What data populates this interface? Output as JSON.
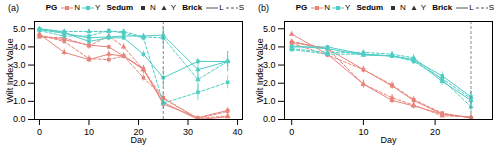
{
  "chart_data": [
    {
      "type": "line",
      "title": "(a)",
      "xlabel": "Day",
      "ylabel": "Wilt Index Value",
      "xlim": [
        -1,
        41
      ],
      "ylim": [
        0,
        5.4
      ],
      "xticks": [
        0,
        10,
        20,
        30,
        40
      ],
      "yticks": [
        0,
        1,
        2,
        3,
        4,
        5
      ],
      "grid": false,
      "legend": "top",
      "vlines": [
        {
          "x": 25,
          "color": "#888888",
          "line_style": "dashed"
        }
      ],
      "series": [
        {
          "color": "#e8837a",
          "line_style": "solid",
          "marker": "square",
          "x": [
            0,
            5,
            10,
            14,
            17,
            21,
            25,
            32,
            38
          ],
          "values": [
            4.6,
            4.4,
            4.1,
            4.0,
            3.5,
            2.8,
            0.85,
            0.1,
            0.5
          ],
          "yerr": [
            0.08,
            0.09,
            0.12,
            0.12,
            0.13,
            0.18,
            0.25,
            0.08,
            0.18
          ]
        },
        {
          "color": "#e8837a",
          "line_style": "dashed",
          "marker": "square",
          "x": [
            0,
            5,
            10,
            14,
            17,
            21,
            25,
            32,
            38
          ],
          "values": [
            4.65,
            4.3,
            3.35,
            3.3,
            3.5,
            2.3,
            1.2,
            0.05,
            0.45
          ],
          "yerr": [
            0.09,
            0.13,
            0.18,
            0.18,
            0.13,
            0.18,
            0.25,
            0.04,
            0.13
          ]
        },
        {
          "color": "#e8837a",
          "line_style": "solid",
          "marker": "triangle",
          "x": [
            0,
            5,
            10,
            14,
            17,
            21,
            25,
            32,
            38
          ],
          "values": [
            4.7,
            3.7,
            3.3,
            3.6,
            3.5,
            2.75,
            0.95,
            0.0,
            0.15
          ],
          "yerr": [
            0.09,
            0.18,
            0.18,
            0.18,
            0.18,
            0.22,
            0.25,
            0.0,
            0.09
          ]
        },
        {
          "color": "#e8837a",
          "line_style": "dashed",
          "marker": "triangle",
          "x": [
            0,
            5,
            10,
            14,
            17,
            21,
            25,
            32,
            38
          ],
          "values": [
            4.55,
            4.5,
            4.05,
            4.6,
            4.0,
            2.75,
            1.15,
            0.05,
            0.2
          ],
          "yerr": [
            0.09,
            0.09,
            0.18,
            0.13,
            0.18,
            0.22,
            0.25,
            0.04,
            0.09
          ]
        },
        {
          "color": "#4ecdc4",
          "line_style": "solid",
          "marker": "square",
          "x": [
            0,
            5,
            10,
            14,
            17,
            21,
            25,
            32,
            38
          ],
          "values": [
            5.0,
            4.8,
            4.3,
            4.5,
            4.5,
            3.6,
            2.3,
            3.2,
            3.2
          ],
          "yerr": [
            0.09,
            0.09,
            0.18,
            0.13,
            0.13,
            0.18,
            0.55,
            0.18,
            0.27
          ]
        },
        {
          "color": "#4ecdc4",
          "line_style": "dashed",
          "marker": "square",
          "x": [
            0,
            5,
            10,
            14,
            17,
            21,
            25,
            32,
            38
          ],
          "values": [
            4.9,
            4.6,
            4.6,
            4.9,
            4.75,
            4.5,
            0.9,
            1.5,
            2.05
          ],
          "yerr": [
            0.09,
            0.13,
            0.13,
            0.09,
            0.09,
            0.18,
            0.36,
            0.45,
            0.36
          ]
        },
        {
          "color": "#4ecdc4",
          "line_style": "solid",
          "marker": "triangle",
          "x": [
            0,
            5,
            10,
            14,
            17,
            21,
            25,
            32,
            38
          ],
          "values": [
            4.95,
            4.75,
            4.5,
            4.55,
            4.6,
            4.6,
            4.65,
            2.75,
            3.2
          ],
          "yerr": [
            0.09,
            0.09,
            0.13,
            0.13,
            0.13,
            0.13,
            0.45,
            0.55,
            0.55
          ]
        },
        {
          "color": "#4ecdc4",
          "line_style": "dashed",
          "marker": "triangle",
          "x": [
            0,
            5,
            10,
            14,
            17,
            21,
            25,
            32,
            38
          ],
          "values": [
            5.0,
            4.85,
            4.85,
            4.85,
            4.85,
            4.55,
            4.5,
            2.2,
            3.2
          ],
          "yerr": [
            0.09,
            0.09,
            0.09,
            0.09,
            0.09,
            0.13,
            0.55,
            0.64,
            0.55
          ]
        }
      ],
      "legend_groups": [
        {
          "title": "PG",
          "entries": [
            {
              "name": "N",
              "color": "#e8837a",
              "marker": "square",
              "line_style": "solid"
            },
            {
              "name": "Y",
              "color": "#4ecdc4",
              "marker": "square",
              "line_style": "solid"
            }
          ]
        },
        {
          "title": "Sedum",
          "entries": [
            {
              "name": "N",
              "color": "#333333",
              "marker": "square",
              "line_style": "none"
            },
            {
              "name": "Y",
              "color": "#333333",
              "marker": "triangle",
              "line_style": "none"
            }
          ]
        },
        {
          "title": "Brick",
          "entries": [
            {
              "name": "L",
              "color": "#555555",
              "marker": "none",
              "line_style": "solid"
            },
            {
              "name": "S",
              "color": "#555555",
              "marker": "none",
              "line_style": "dashed"
            }
          ]
        }
      ]
    },
    {
      "type": "line",
      "title": "(b)",
      "xlabel": "Day",
      "ylabel": "Wilt Index Value",
      "xlim": [
        -1,
        28
      ],
      "ylim": [
        0,
        5.4
      ],
      "xticks": [
        0,
        10,
        20
      ],
      "yticks": [
        0,
        1,
        2,
        3,
        4,
        5
      ],
      "grid": false,
      "legend": "top",
      "vlines": [
        {
          "x": 25,
          "color": "#888888",
          "line_style": "dashed"
        }
      ],
      "series": [
        {
          "color": "#e8837a",
          "line_style": "solid",
          "marker": "square",
          "x": [
            0,
            5,
            10,
            14,
            17,
            21,
            25
          ],
          "values": [
            4.25,
            3.9,
            2.75,
            1.85,
            1.05,
            0.3,
            0.1
          ],
          "yerr": [
            0.09,
            0.13,
            0.18,
            0.18,
            0.18,
            0.13,
            0.04
          ]
        },
        {
          "color": "#e8837a",
          "line_style": "dashed",
          "marker": "square",
          "x": [
            0,
            5,
            10,
            14,
            17,
            21,
            25
          ],
          "values": [
            4.2,
            3.55,
            2.75,
            1.9,
            1.1,
            0.35,
            0.1
          ],
          "yerr": [
            0.09,
            0.13,
            0.18,
            0.18,
            0.18,
            0.09,
            0.04
          ]
        },
        {
          "color": "#e8837a",
          "line_style": "solid",
          "marker": "triangle",
          "x": [
            0,
            5,
            10,
            14,
            17,
            21,
            25
          ],
          "values": [
            4.7,
            3.6,
            1.95,
            1.05,
            0.75,
            0.3,
            0.1
          ],
          "yerr": [
            0.13,
            0.18,
            0.22,
            0.18,
            0.18,
            0.09,
            0.04
          ]
        },
        {
          "color": "#e8837a",
          "line_style": "dashed",
          "marker": "triangle",
          "x": [
            0,
            5,
            10,
            14,
            17,
            21,
            25
          ],
          "values": [
            4.3,
            3.9,
            1.95,
            1.2,
            0.8,
            0.2,
            0.15
          ],
          "yerr": [
            0.09,
            0.13,
            0.22,
            0.18,
            0.18,
            0.09,
            0.04
          ]
        },
        {
          "color": "#4ecdc4",
          "line_style": "solid",
          "marker": "square",
          "x": [
            0,
            5,
            10,
            14,
            17,
            21,
            25
          ],
          "values": [
            4.0,
            4.0,
            3.6,
            3.5,
            3.3,
            2.4,
            1.25
          ],
          "yerr": [
            0.09,
            0.09,
            0.13,
            0.13,
            0.18,
            0.22,
            0.36
          ]
        },
        {
          "color": "#4ecdc4",
          "line_style": "dashed",
          "marker": "square",
          "x": [
            0,
            5,
            10,
            14,
            17,
            21,
            25
          ],
          "values": [
            3.85,
            3.6,
            3.6,
            3.5,
            3.2,
            2.25,
            1.15
          ],
          "yerr": [
            0.09,
            0.13,
            0.13,
            0.13,
            0.18,
            0.22,
            0.36
          ]
        },
        {
          "color": "#4ecdc4",
          "line_style": "solid",
          "marker": "triangle",
          "x": [
            0,
            5,
            10,
            14,
            17,
            21,
            25
          ],
          "values": [
            4.05,
            3.9,
            3.55,
            3.5,
            3.3,
            2.1,
            1.05
          ],
          "yerr": [
            0.09,
            0.09,
            0.13,
            0.13,
            0.18,
            0.22,
            0.32
          ]
        },
        {
          "color": "#4ecdc4",
          "line_style": "dashed",
          "marker": "triangle",
          "x": [
            0,
            5,
            10,
            14,
            17,
            21,
            25
          ],
          "values": [
            3.9,
            3.7,
            3.7,
            3.6,
            3.4,
            2.2,
            0.7
          ],
          "yerr": [
            0.09,
            0.09,
            0.13,
            0.13,
            0.18,
            0.22,
            0.27
          ]
        }
      ],
      "legend_groups": [
        {
          "title": "PG",
          "entries": [
            {
              "name": "N",
              "color": "#e8837a",
              "marker": "square",
              "line_style": "solid"
            },
            {
              "name": "Y",
              "color": "#4ecdc4",
              "marker": "square",
              "line_style": "solid"
            }
          ]
        },
        {
          "title": "Sedum",
          "entries": [
            {
              "name": "N",
              "color": "#333333",
              "marker": "square",
              "line_style": "none"
            },
            {
              "name": "Y",
              "color": "#333333",
              "marker": "triangle",
              "line_style": "none"
            }
          ]
        },
        {
          "title": "Brick",
          "entries": [
            {
              "name": "L",
              "color": "#555555",
              "marker": "none",
              "line_style": "solid"
            },
            {
              "name": "S",
              "color": "#555555",
              "marker": "none",
              "line_style": "dashed"
            }
          ]
        }
      ]
    }
  ]
}
